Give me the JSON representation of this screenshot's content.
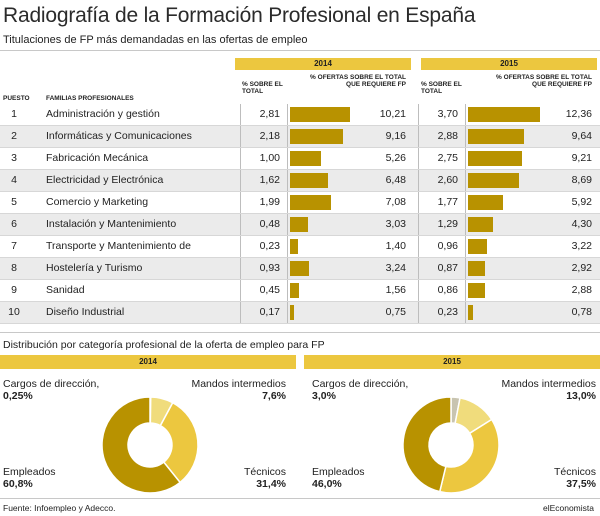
{
  "title": "Radiografía de la Formación Profesional en España",
  "subtitle": "Titulaciones de FP más demandadas en las ofertas de empleo",
  "table": {
    "col_puesto": "PUESTO",
    "col_familia": "FAMILIAS PROFESIONALES",
    "col_pct_total": "% SOBRE EL TOTAL",
    "col_pct_ofertas": "% OFERTAS SOBRE EL TOTAL QUE REQUIERE FP",
    "year_a": "2014",
    "year_b": "2015"
  },
  "chart_data": [
    {
      "type": "table",
      "title": "Titulaciones de FP más demandadas en las ofertas de empleo",
      "columns": [
        "PUESTO",
        "FAMILIAS PROFESIONALES",
        "2014 % SOBRE EL TOTAL",
        "2014 % OFERTAS SOBRE EL TOTAL QUE REQUIERE FP",
        "2015 % SOBRE EL TOTAL",
        "2015 % OFERTAS SOBRE EL TOTAL QUE REQUIERE FP"
      ],
      "rows": [
        {
          "rank": "1",
          "family": "Administración y gestión",
          "pct_2014": "2,81",
          "ofertas_2014": "10,21",
          "pct_2015": "3,70",
          "ofertas_2015": "12,36"
        },
        {
          "rank": "2",
          "family": "Informáticas y Comunicaciones",
          "pct_2014": "2,18",
          "ofertas_2014": "9,16",
          "pct_2015": "2,88",
          "ofertas_2015": "9,64"
        },
        {
          "rank": "3",
          "family": "Fabricación Mecánica",
          "pct_2014": "1,00",
          "ofertas_2014": "5,26",
          "pct_2015": "2,75",
          "ofertas_2015": "9,21"
        },
        {
          "rank": "4",
          "family": "Electricidad y Electrónica",
          "pct_2014": "1,62",
          "ofertas_2014": "6,48",
          "pct_2015": "2,60",
          "ofertas_2015": "8,69"
        },
        {
          "rank": "5",
          "family": "Comercio y Marketing",
          "pct_2014": "1,99",
          "ofertas_2014": "7,08",
          "pct_2015": "1,77",
          "ofertas_2015": "5,92"
        },
        {
          "rank": "6",
          "family": "Instalación y Mantenimiento",
          "pct_2014": "0,48",
          "ofertas_2014": "3,03",
          "pct_2015": "1,29",
          "ofertas_2015": "4,30"
        },
        {
          "rank": "7",
          "family": "Transporte y Mantenimiento de Vehículos",
          "pct_2014": "0,23",
          "ofertas_2014": "1,40",
          "pct_2015": "0,96",
          "ofertas_2015": "3,22"
        },
        {
          "rank": "8",
          "family": "Hostelería y Turismo",
          "pct_2014": "0,93",
          "ofertas_2014": "3,24",
          "pct_2015": "0,87",
          "ofertas_2015": "2,92"
        },
        {
          "rank": "9",
          "family": "Sanidad",
          "pct_2014": "0,45",
          "ofertas_2014": "1,56",
          "pct_2015": "0,86",
          "ofertas_2015": "2,88"
        },
        {
          "rank": "10",
          "family": "Diseño Industrial",
          "pct_2014": "0,17",
          "ofertas_2014": "0,75",
          "pct_2015": "0,23",
          "ofertas_2015": "0,78"
        }
      ]
    },
    {
      "type": "pie",
      "title": "Distribución por categoría profesional de la oferta de empleo para FP",
      "panel": "2014",
      "slices": [
        {
          "label": "Cargos de dirección,",
          "value": 0.25,
          "display": "0,25%"
        },
        {
          "label": "Mandos intermedios",
          "value": 7.6,
          "display": "7,6%"
        },
        {
          "label": "Técnicos",
          "value": 31.4,
          "display": "31,4%"
        },
        {
          "label": "Empleados",
          "value": 60.8,
          "display": "60,8%"
        }
      ]
    },
    {
      "type": "pie",
      "title": "Distribución por categoría profesional de la oferta de empleo para FP",
      "panel": "2015",
      "slices": [
        {
          "label": "Cargos de dirección,",
          "value": 3.0,
          "display": "3,0%"
        },
        {
          "label": "Mandos intermedios",
          "value": 13.0,
          "display": "13,0%"
        },
        {
          "label": "Técnicos",
          "value": 37.5,
          "display": "37,5%"
        },
        {
          "label": "Empleados",
          "value": 46.0,
          "display": "46,0%"
        }
      ]
    }
  ],
  "pie_section": {
    "title": "Distribución por categoría profesional de la oferta de empleo para FP",
    "year_a": "2014",
    "year_b": "2015"
  },
  "colors": {
    "accent_band": "#ecc73f",
    "bar": "#b89200",
    "slice_direccion": "#c8c4b0",
    "slice_mandos": "#f0dc7c",
    "slice_tecnicos": "#ecc73f",
    "slice_empleados": "#b89200"
  },
  "footer": {
    "source": "Fuente: Infoempleo y Adecco.",
    "brand": "elEconomista"
  }
}
